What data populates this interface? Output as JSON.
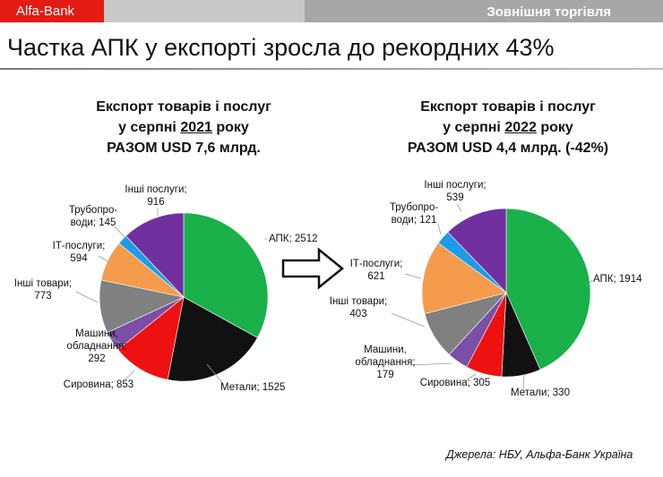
{
  "header": {
    "brand": "Alfa-Bank",
    "section": "Зовнішня торгівля"
  },
  "page_title": "Частка АПК у експорті зросла до рекордних 43%",
  "colors": {
    "apk": "#1ab04a",
    "metals": "#111111",
    "raw": "#ee1111",
    "machines": "#7b4fa6",
    "other_goods": "#808080",
    "it": "#f59b4c",
    "pipelines": "#1e9be8",
    "other_services": "#7030a0"
  },
  "source": "Джерела: НБУ, Альфа-Банк Україна",
  "arrow_icon": "right-arrow-icon",
  "chart_data": [
    {
      "type": "pie",
      "title_line1": "Експорт товарів і послуг",
      "title_pre": "у серпні ",
      "title_year": "2021",
      "title_post": " року",
      "title_line3": "РАЗОМ USD 7,6 млрд.",
      "slices": [
        {
          "label": "АПК; 2512",
          "value": 2512,
          "color": "#1ab04a"
        },
        {
          "label": "Метали; 1525",
          "value": 1525,
          "color": "#111111"
        },
        {
          "label": "Сировина; 853",
          "value": 853,
          "color": "#ee1111"
        },
        {
          "label": "Машини, обладнання; 292",
          "value": 292,
          "color": "#7b4fa6"
        },
        {
          "label": "Інші товари; 773",
          "value": 773,
          "color": "#808080"
        },
        {
          "label": "ІТ-послуги; 594",
          "value": 594,
          "color": "#f59b4c"
        },
        {
          "label": "Трубопроводи; 145",
          "value": 145,
          "color": "#1e9be8"
        },
        {
          "label": "Інші послуги; 916",
          "value": 916,
          "color": "#7030a0"
        }
      ]
    },
    {
      "type": "pie",
      "title_line1": "Експорт товарів і послуг",
      "title_pre": "у серпні ",
      "title_year": "2022",
      "title_post": " року",
      "title_line3": "РАЗОМ USD 4,4 млрд. (-42%)",
      "slices": [
        {
          "label": "АПК; 1914",
          "value": 1914,
          "color": "#1ab04a"
        },
        {
          "label": "Метали; 330",
          "value": 330,
          "color": "#111111"
        },
        {
          "label": "Сировина; 305",
          "value": 305,
          "color": "#ee1111"
        },
        {
          "label": "Машини, обладнання; 179",
          "value": 179,
          "color": "#7b4fa6"
        },
        {
          "label": "Інші товари; 403",
          "value": 403,
          "color": "#808080"
        },
        {
          "label": "ІТ-послуги; 621",
          "value": 621,
          "color": "#f59b4c"
        },
        {
          "label": "Трубопроводи; 121",
          "value": 121,
          "color": "#1e9be8"
        },
        {
          "label": "Інші послуги; 539",
          "value": 539,
          "color": "#7030a0"
        }
      ]
    }
  ]
}
